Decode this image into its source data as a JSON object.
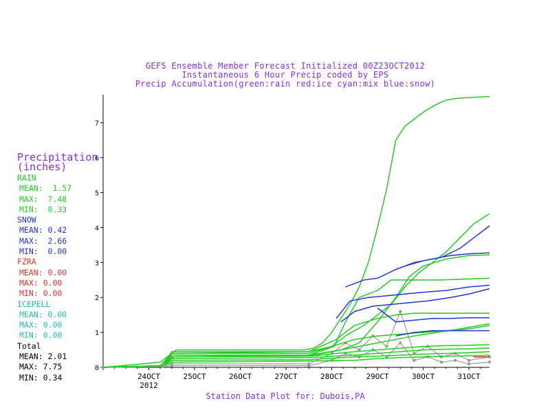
{
  "title_lines": [
    "GEFS Ensemble Member Forecast Initialized 00Z23OCT2012",
    "Instantaneous 6 Hour Precip coded by EPS",
    "Precip Accumulation(green:rain red:ice cyan:mix blue:snow)"
  ],
  "footer": "Station Data Plot for: Dubois,PA",
  "legend": {
    "heading": [
      "Precipitation",
      "(inches)"
    ],
    "sections": [
      {
        "name": "RAIN",
        "color": "#22cc22",
        "rows": [
          "MEAN:  1.57",
          "MAX:  7.48",
          "MIN:  0.33"
        ]
      },
      {
        "name": "SNOW",
        "color": "#2233cc",
        "rows": [
          "MEAN: 0.42",
          "MAX:  2.66",
          "MIN:  0.00"
        ]
      },
      {
        "name": "FZRA",
        "color": "#dd3333",
        "rows": [
          "MEAN: 0.00",
          "MAX: 0.00",
          "MIN: 0.00"
        ]
      },
      {
        "name": "ICEPELL",
        "color": "#22bbbb",
        "rows": [
          "MEAN: 0.00",
          "MAX: 0.00",
          "MIN: 0.00"
        ]
      },
      {
        "name": "Total",
        "color": "#000000",
        "rows": [
          "MEAN: 2.01",
          "MAX: 7.75",
          "MIN: 0.34"
        ]
      }
    ]
  },
  "chart_data": {
    "type": "line",
    "x_tick_labels": [
      "24OCT",
      "25OCT",
      "26OCT",
      "27OCT",
      "28OCT",
      "29OCT",
      "30OCT",
      "31OCT"
    ],
    "x_sublabel": "2012",
    "xlim": [
      23.0,
      31.45
    ],
    "y_ticks": [
      0,
      1,
      2,
      3,
      4,
      5,
      6,
      7
    ],
    "ylim": [
      0,
      7.8
    ],
    "colors": {
      "rain": "#22cc22",
      "snow": "#2233dd",
      "ice": "#dd3333",
      "mix": "#22bbbb",
      "ens": "#999999"
    },
    "series": [
      {
        "type": "rain",
        "x": [
          23,
          23.7,
          24.25,
          24.6,
          27.4,
          27.6,
          27.8,
          28.0,
          28.2,
          28.4,
          28.6,
          28.8,
          29.0,
          29.2,
          29.4,
          29.5,
          29.6,
          29.8,
          30.0,
          30.25,
          30.5,
          30.75,
          31.0,
          31.45
        ],
        "y": [
          0,
          0.08,
          0.15,
          0.5,
          0.5,
          0.55,
          0.7,
          1.0,
          1.4,
          1.8,
          2.3,
          3.0,
          4.0,
          5.1,
          6.5,
          6.7,
          6.9,
          7.1,
          7.3,
          7.5,
          7.65,
          7.7,
          7.72,
          7.75
        ]
      },
      {
        "type": "rain",
        "x": [
          23,
          24.25,
          24.5,
          27.5,
          28.0,
          28.3,
          28.7,
          29.0,
          29.3,
          29.6,
          29.9,
          30.2,
          30.5,
          30.8,
          31.1,
          31.45
        ],
        "y": [
          0,
          0.05,
          0.4,
          0.4,
          0.6,
          0.9,
          1.2,
          1.5,
          1.8,
          2.3,
          2.7,
          3.0,
          3.3,
          3.7,
          4.1,
          4.4
        ]
      },
      {
        "type": "rain",
        "x": [
          23,
          24.3,
          24.55,
          27.5,
          28.05,
          28.3,
          28.6,
          29.0,
          29.3,
          29.6,
          30.0,
          30.4,
          30.8,
          31.45
        ],
        "y": [
          0,
          0.05,
          0.3,
          0.35,
          0.6,
          1.3,
          2.0,
          2.2,
          2.5,
          2.5,
          2.5,
          2.5,
          2.52,
          2.55
        ]
      },
      {
        "type": "rain",
        "x": [
          23,
          24.3,
          24.5,
          27.6,
          28.2,
          28.6,
          29.0,
          29.4,
          29.7,
          30.0,
          30.5,
          31.0,
          31.45
        ],
        "y": [
          0,
          0.05,
          0.35,
          0.35,
          0.5,
          0.7,
          1.3,
          2.0,
          2.6,
          2.9,
          3.1,
          3.2,
          3.22
        ]
      },
      {
        "type": "rain",
        "x": [
          23,
          24.3,
          24.5,
          27.5,
          28.1,
          28.5,
          29.0,
          29.4,
          29.8,
          30.2,
          30.6,
          31.0,
          31.45
        ],
        "y": [
          0,
          0.05,
          0.4,
          0.45,
          0.8,
          1.2,
          1.4,
          1.5,
          1.55,
          1.55,
          1.55,
          1.55,
          1.55
        ]
      },
      {
        "type": "rain",
        "x": [
          23,
          24.3,
          24.5,
          27.5,
          28.2,
          28.6,
          29.0,
          29.4,
          29.8,
          30.3,
          30.8,
          31.45
        ],
        "y": [
          0,
          0.05,
          0.3,
          0.35,
          0.5,
          0.6,
          0.7,
          0.8,
          0.9,
          1.0,
          1.1,
          1.25
        ]
      },
      {
        "type": "rain",
        "x": [
          23,
          24.3,
          24.5,
          27.5,
          28.5,
          29.0,
          29.5,
          30.0,
          30.5,
          31.0,
          31.45
        ],
        "y": [
          0,
          0.05,
          0.3,
          0.32,
          0.45,
          0.5,
          0.55,
          0.6,
          0.62,
          0.63,
          0.65
        ]
      },
      {
        "type": "rain",
        "x": [
          23,
          24.3,
          24.5,
          27.5,
          28.5,
          29.0,
          29.5,
          30.0,
          30.5,
          31.0,
          31.45
        ],
        "y": [
          0,
          0.05,
          0.25,
          0.28,
          0.35,
          0.4,
          0.45,
          0.5,
          0.52,
          0.53,
          0.55
        ]
      },
      {
        "type": "rain",
        "x": [
          23,
          24.3,
          24.5,
          27.5,
          28.5,
          29.0,
          29.5,
          30.0,
          30.5,
          31.0,
          31.45
        ],
        "y": [
          0,
          0.05,
          0.2,
          0.22,
          0.3,
          0.32,
          0.35,
          0.38,
          0.4,
          0.42,
          0.45
        ]
      },
      {
        "type": "rain",
        "x": [
          23,
          24.3,
          24.5,
          27.5,
          28.5,
          29.0,
          29.5,
          30.0,
          30.5,
          31.0,
          31.45
        ],
        "y": [
          0,
          0.05,
          0.15,
          0.18,
          0.2,
          0.25,
          0.28,
          0.3,
          0.32,
          0.33,
          0.35
        ]
      },
      {
        "type": "rain",
        "x": [
          23,
          24.3,
          24.5,
          27.5,
          28.0,
          28.5,
          29.0,
          29.5,
          30.0,
          30.5,
          31.0,
          31.45
        ],
        "y": [
          0,
          0.05,
          0.45,
          0.45,
          0.6,
          0.8,
          0.9,
          0.95,
          1.0,
          1.05,
          1.1,
          1.2
        ]
      },
      {
        "type": "snow",
        "x": [
          28.1,
          28.4,
          28.8,
          29.2,
          29.6,
          30.0,
          30.5,
          31.0,
          31.45
        ],
        "y": [
          1.4,
          1.9,
          2.0,
          2.05,
          2.1,
          2.15,
          2.2,
          2.3,
          2.35
        ]
      },
      {
        "type": "snow",
        "x": [
          28.2,
          28.5,
          28.9,
          29.3,
          29.7,
          30.1,
          30.6,
          31.0,
          31.45
        ],
        "y": [
          1.3,
          1.6,
          1.75,
          1.8,
          1.85,
          1.9,
          2.0,
          2.1,
          2.25
        ]
      },
      {
        "type": "snow",
        "x": [
          28.3,
          28.7,
          29.0,
          29.4,
          29.8,
          30.2,
          30.6,
          31.0,
          31.45
        ],
        "y": [
          2.3,
          2.5,
          2.55,
          2.8,
          3.0,
          3.1,
          3.2,
          3.25,
          3.28
        ]
      },
      {
        "type": "snow",
        "x": [
          29.6,
          30.0,
          30.4,
          30.8,
          31.1,
          31.45
        ],
        "y": [
          2.9,
          3.05,
          3.15,
          3.4,
          3.7,
          4.05
        ]
      },
      {
        "type": "snow",
        "x": [
          29.0,
          29.4,
          29.8,
          30.2,
          30.6,
          31.0,
          31.45
        ],
        "y": [
          1.7,
          1.3,
          1.35,
          1.4,
          1.4,
          1.42,
          1.42
        ]
      },
      {
        "type": "snow",
        "x": [
          29.4,
          29.8,
          30.2,
          30.6,
          31.0,
          31.45
        ],
        "y": [
          0.9,
          1.0,
          1.05,
          1.05,
          1.05,
          1.05
        ]
      },
      {
        "type": "ens",
        "x": [
          23,
          24.3,
          24.5,
          27.5,
          28.0,
          28.3,
          28.6,
          28.9,
          29.2,
          29.5,
          29.8,
          30.1,
          30.4,
          30.7,
          31.0,
          31.45
        ],
        "y": [
          0,
          0.02,
          0.1,
          0.1,
          0.4,
          0.7,
          0.5,
          0.9,
          0.6,
          1.6,
          0.4,
          0.6,
          0.3,
          0.4,
          0.2,
          0.3
        ]
      },
      {
        "type": "ens",
        "x": [
          23,
          24.3,
          24.5,
          27.5,
          28.0,
          28.3,
          28.6,
          28.9,
          29.2,
          29.5,
          29.8,
          30.1,
          30.4,
          30.7,
          31.0,
          31.45
        ],
        "y": [
          0,
          0.02,
          0.05,
          0.05,
          0.2,
          0.4,
          0.3,
          0.5,
          0.3,
          0.7,
          0.2,
          0.3,
          0.15,
          0.2,
          0.1,
          0.15
        ]
      },
      {
        "type": "ice",
        "x": [
          31.1,
          31.45
        ],
        "y": [
          0.3,
          0.3
        ]
      }
    ]
  }
}
